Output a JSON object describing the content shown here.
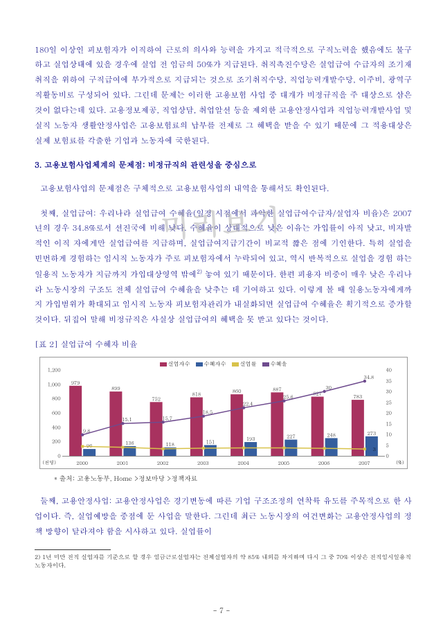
{
  "watermark": "미리보기",
  "para1": "180일 이상인 피보험자가 이직하여 근로의 의사와 능력을 가지고 적극적으로 구직노력을 했음에도 불구하고 실업상태에 있을 경우에 실업 전 임금의 50%가 지급된다. 취직촉진수당은 실업급여 수급자의 조기재취직을 위하여 구직급여에 부가적으로 지급되는 것으로 조기취직수당, 직업능력개발수당, 이주비, 광역구직활동비로 구성되어 있다. 그런데 문제는 이러한 고용보험 사업 중 대개가 비정규직을 주 대상으로 삼은 것이 없다는데 있다. 고용정보제공, 직업상담, 취업알선 등을 제외한 고용안정사업과 직업능력개발사업 및 실직 노동자 생활안정사업은 고용보험료의 납부를 전제로 그 혜택을 받을 수 있기 때문에 그 적용대상은 실제 보험료를 각출한 기업과 노동자에 국한된다.",
  "heading": "3. 고용보험사업체계의 문제점: 비정규직의 관련성을 중심으로",
  "para2a": "고용보험사업의 문제점은 구체적으로 고용보험사업의 내역을 통해서도 확인된다.",
  "para2b": "첫째, 실업급여: 우리나라 실업급여 수혜율(일정 시점에서 파악한 실업급여수급자/실업자 비율)은 2007년의 경우 34.8%로서 선진국에 비해 낮다. 수혜율이 상대적으로 낮은 이유는 가입률이 아직 낮고, 비자발적인 이직 자에게만 실업급여를 지급하며, 실업급여지급기간이 비교적 짧은 점에 기인한다. 특히 실업을 빈번하게 경험하는 임시직 노동자가 주로 피보험자에서 누락되어 있고, 역시 반복적으로 실업을 경험 하는 일용직 노동자가 지금까지 가입대상영역 밖에",
  "fn_mark": "2)",
  "para2c": " 놓여 있기 때문이다. 한편 피용자 비중이 매우 낮은 우리나라 노동시장의 구조도 전체 실업급여 수혜율을 낮추는 데 기여하고 있다. 이렇게 볼 때 일용노동자에게까지 가입범위가 확대되고 임시직 노동자 피보험자관리가 내실화되면 실업급여 수혜율은 획기적으로 증가할 것이다. 뒤집어 말해 비정규직은 사실상 실업급여의 혜택을 못 받고 있다는 것이다.",
  "chart": {
    "title": "[표 2] 실업급여 수혜자 비율",
    "legend": {
      "bar1": "실업자수",
      "bar2": "수혜자수",
      "line1": "실업률",
      "line2": "수혜율"
    },
    "colors": {
      "bar1": "#a8325f",
      "bar2": "#355e9e",
      "line1": "#d8c24a",
      "line2": "#6e4b8e",
      "grid": "#cccccc",
      "border": "#999999"
    },
    "years": [
      "2000",
      "2001",
      "2002",
      "2003",
      "2004",
      "2005",
      "2006",
      "2007"
    ],
    "bar1_values": [
      979,
      899,
      752,
      818,
      860,
      887,
      827,
      783
    ],
    "bar2_values": [
      96,
      136,
      118,
      151,
      193,
      227,
      248,
      273
    ],
    "line1_values": [
      4.4,
      4.0,
      3.3,
      3.6,
      3.7,
      3.7,
      3.5,
      3.2
    ],
    "line2_values": [
      9.8,
      15.1,
      15.7,
      18.5,
      22.4,
      25.6,
      30.0,
      34.8
    ],
    "left_axis": {
      "min": 0,
      "max": 1200,
      "step": 200,
      "unit": "(천명)"
    },
    "right_axis": {
      "min": 0,
      "max": 40,
      "step": 5,
      "unit": "(%)"
    }
  },
  "source": "* 출처: 고용노동부, Home >정보마당 >정책자료",
  "para3": "둘째, 고용안정사업: 고용안정사업은 경기변동에 따른 기업 구조조정의 연착륙 유도를 주목적으로 한 사업이다. 즉, 실업예방을 중점에 둔 사업을 말한다. 그런데 최근 노동시장의 여건변화는 고용안정사업의 정책 방향이 달라져야 함을 시사하고 있다. 실업률이",
  "footnote": "2) 1년 미만 전직 실업자를 기준으로 할 경우 임금근로실업자는 전체실업자의 약 85% 내외를 차지하며 다시 그 중 70% 이상은 전직임시일용직 노동자이다.",
  "page_number": "- 7 -"
}
